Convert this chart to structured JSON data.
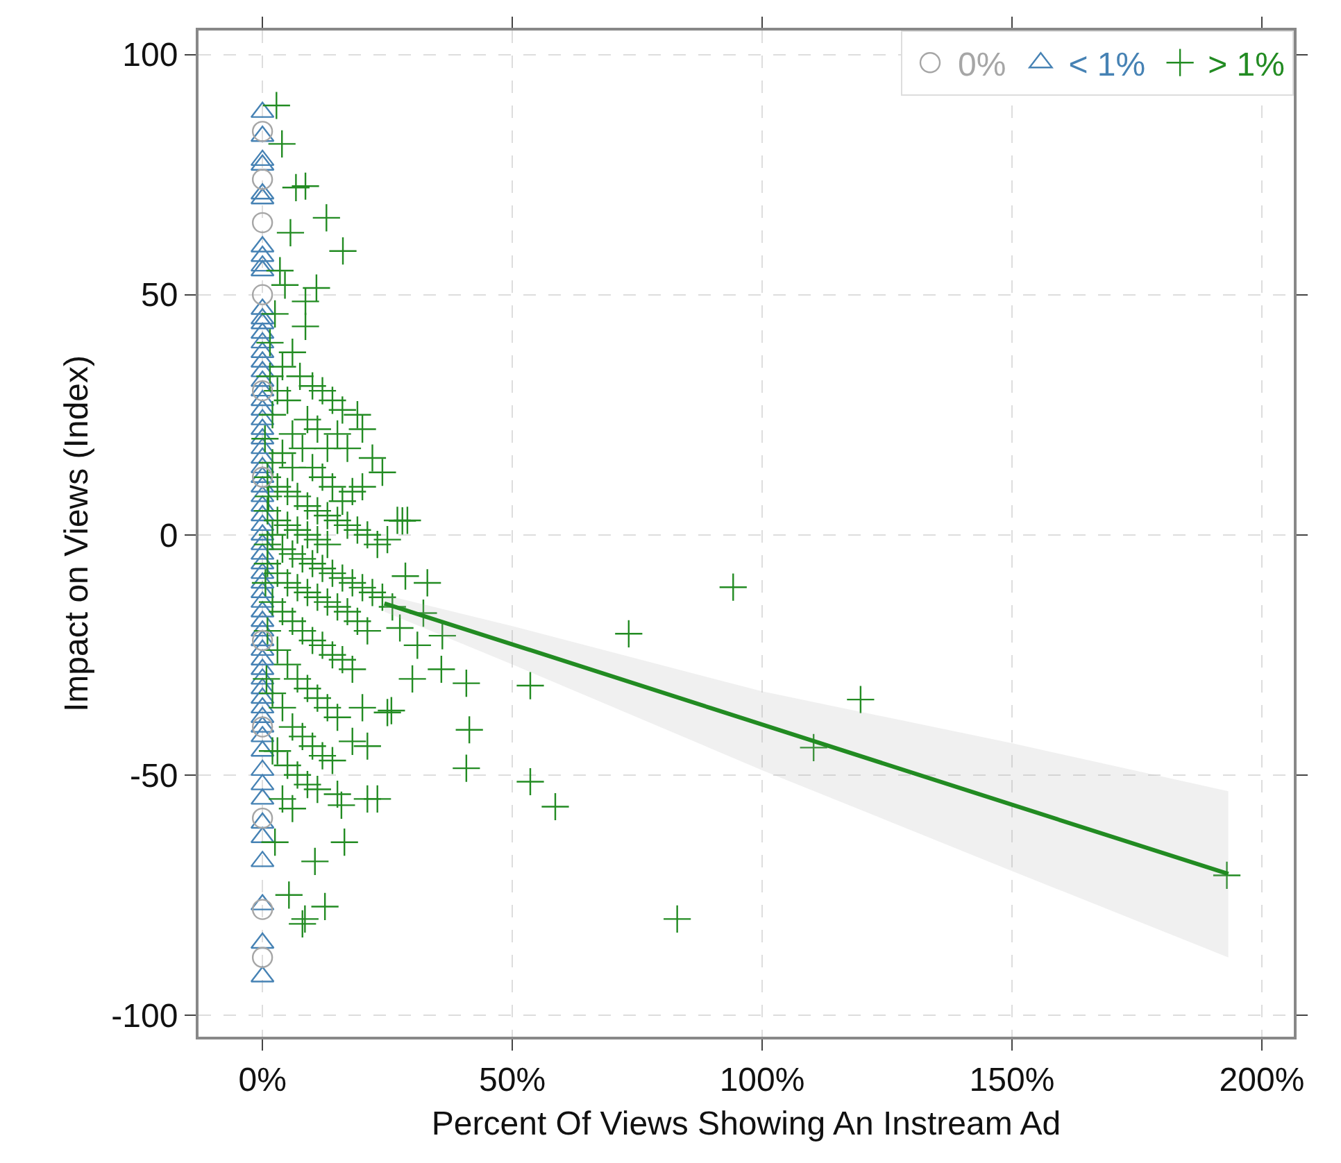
{
  "chart_data": {
    "type": "scatter",
    "xlabel": "Percent Of Views Showing An Instream Ad",
    "ylabel": "Impact on Views (Index)",
    "xlim": [
      -12.8,
      206.4
    ],
    "xticks": [
      {
        "value": 0,
        "label": "0%"
      },
      {
        "value": 50,
        "label": "50%"
      },
      {
        "value": 100,
        "label": "100%"
      },
      {
        "value": 150,
        "label": "150%"
      },
      {
        "value": 200,
        "label": "200%"
      }
    ],
    "ylim": [
      -104.5,
      105
    ],
    "yticks": [
      -100,
      -50,
      0,
      50,
      100
    ],
    "grid": true,
    "legend": "top right",
    "series": [
      {
        "name": "0%",
        "color": "#a6a6a6",
        "marker": "circle",
        "x": [
          0,
          0,
          0,
          0,
          0,
          0,
          0,
          0,
          0,
          0,
          0
        ],
        "values": [
          84,
          74,
          65,
          50,
          30,
          12,
          -22,
          -40,
          -59,
          -78,
          -88
        ]
      },
      {
        "name": "< 1%",
        "color": "#4682b4",
        "marker": "triangle",
        "x": [
          0,
          0,
          0,
          0,
          0,
          0,
          0,
          0,
          0,
          0,
          0,
          0,
          0,
          0,
          0,
          0,
          0,
          0,
          0,
          0,
          0,
          0,
          0,
          0,
          0,
          0,
          0,
          0,
          0,
          0,
          0,
          0,
          0,
          0,
          0,
          0,
          0,
          0,
          0,
          0,
          0,
          0,
          0,
          0,
          0,
          0,
          0,
          0,
          0,
          0,
          0,
          0,
          0,
          0,
          0,
          0,
          0,
          0,
          0,
          0,
          0,
          0,
          0,
          0,
          0,
          0
        ],
        "values": [
          88,
          83,
          78,
          77,
          71,
          70,
          60,
          58,
          56,
          55,
          47,
          45,
          44,
          42,
          40,
          38,
          36,
          34,
          32,
          30,
          28,
          26,
          24,
          22,
          20,
          18,
          16,
          14,
          12,
          10,
          8,
          6,
          4,
          2,
          0,
          -2,
          -4,
          -6,
          -8,
          -10,
          -12,
          -14,
          -16,
          -18,
          -20,
          -22,
          -24,
          -26,
          -28,
          -30,
          -32,
          -34,
          -36,
          -38,
          -40,
          -42,
          -45,
          -49,
          -52,
          -55,
          -60,
          -63,
          -68,
          -77,
          -85,
          -92
        ]
      },
      {
        "name": "> 1%",
        "color": "#228b22",
        "marker": "cross",
        "x": [
          2.8,
          3.9,
          6.7,
          8.6,
          12.8,
          16.1,
          5.6,
          10.8,
          8.6,
          8.6,
          3.5,
          4.5,
          2.5,
          1.5,
          6,
          4,
          7.5,
          10,
          12,
          14,
          16,
          19,
          20,
          3,
          5,
          2,
          9,
          11,
          6,
          15,
          1.5,
          13,
          17,
          22,
          24,
          20,
          18,
          27,
          29,
          25,
          8,
          4,
          2,
          6,
          10,
          12,
          14,
          16,
          1,
          3,
          5,
          7,
          9,
          11,
          13,
          15,
          17,
          19,
          21,
          23,
          1,
          3,
          5,
          7,
          9,
          11,
          13,
          2,
          4,
          6,
          8,
          10,
          12,
          14,
          16,
          18,
          20,
          22,
          24,
          26,
          1,
          3,
          5,
          7,
          9,
          11,
          13,
          15,
          17,
          19,
          21,
          2,
          4,
          6,
          8,
          10,
          12,
          14,
          16,
          18,
          1,
          3,
          5,
          7,
          9,
          11,
          13,
          15,
          20,
          25,
          2,
          4,
          6,
          8,
          10,
          12,
          14,
          18,
          21,
          3,
          5,
          7,
          9,
          11,
          4,
          6,
          15,
          21,
          27.5,
          32.2,
          28.6,
          28,
          25.8,
          23,
          15.8,
          16.4,
          12.5,
          8,
          5.3,
          8.5,
          10.5,
          2.5,
          35.8,
          40.8,
          41.4,
          40.8,
          53.6,
          53.6,
          58.6,
          73.3,
          83,
          94.2,
          110.3,
          119.7,
          193,
          31,
          36,
          33,
          30,
          0.5,
          1,
          0.8,
          1.2,
          2,
          0.6
        ],
        "values": [
          89.4,
          81.4,
          72.3,
          72.6,
          66,
          59.1,
          62.9,
          51.4,
          48.6,
          43.4,
          55,
          52,
          46,
          40,
          38,
          35,
          33,
          31,
          30,
          28,
          26,
          25,
          22,
          30,
          28,
          25,
          24,
          22,
          21,
          21,
          33,
          18,
          18,
          16,
          13,
          10,
          9,
          3,
          3,
          -1,
          18,
          17,
          15,
          14,
          14,
          12,
          10,
          7,
          12,
          10,
          9,
          8,
          6,
          5,
          4,
          3,
          2,
          1,
          0,
          -2,
          5,
          3,
          2,
          1,
          0,
          -1,
          -2,
          0,
          -3,
          -4,
          -5,
          -6,
          -7,
          -8,
          -9,
          -10,
          -11,
          -12,
          -13,
          -15,
          -6,
          -8,
          -10,
          -11,
          -12,
          -13,
          -14,
          -15,
          -16,
          -18,
          -20,
          -14,
          -16,
          -18,
          -20,
          -22,
          -23,
          -25,
          -26,
          -28,
          -20,
          -24,
          -27,
          -30,
          -32,
          -34,
          -36,
          -38,
          -36,
          -37,
          -33,
          -36,
          -40,
          -42,
          -44,
          -46,
          -47,
          -43,
          -44,
          -45,
          -48,
          -50,
          -52,
          -53,
          -55,
          -57,
          -54,
          -55,
          -19.4,
          -16.3,
          -8.6,
          2.9,
          -36.6,
          -55,
          -56.3,
          -64,
          -77.4,
          -81,
          -75,
          -80,
          -68,
          -64,
          -28,
          -30.9,
          -40.6,
          -48.6,
          -31.4,
          -51.4,
          -56.6,
          -20.6,
          -80,
          -10.9,
          -44.3,
          -34.3,
          -70.9,
          -23,
          -21,
          -10,
          -30,
          20,
          -2,
          -30,
          8,
          -45,
          -10
        ]
      },
      {
        "type": "line",
        "color": "#228b22",
        "x": [
          24.4,
          50,
          100,
          150,
          193.3
        ],
        "values": [
          -14.3,
          -22.8,
          -39.5,
          -56.2,
          -70.6
        ],
        "lower": [
          -16,
          -27,
          -49,
          -70,
          -88
        ],
        "upper": [
          -12.5,
          -19,
          -32.6,
          -43.4,
          -53.4
        ]
      }
    ]
  }
}
